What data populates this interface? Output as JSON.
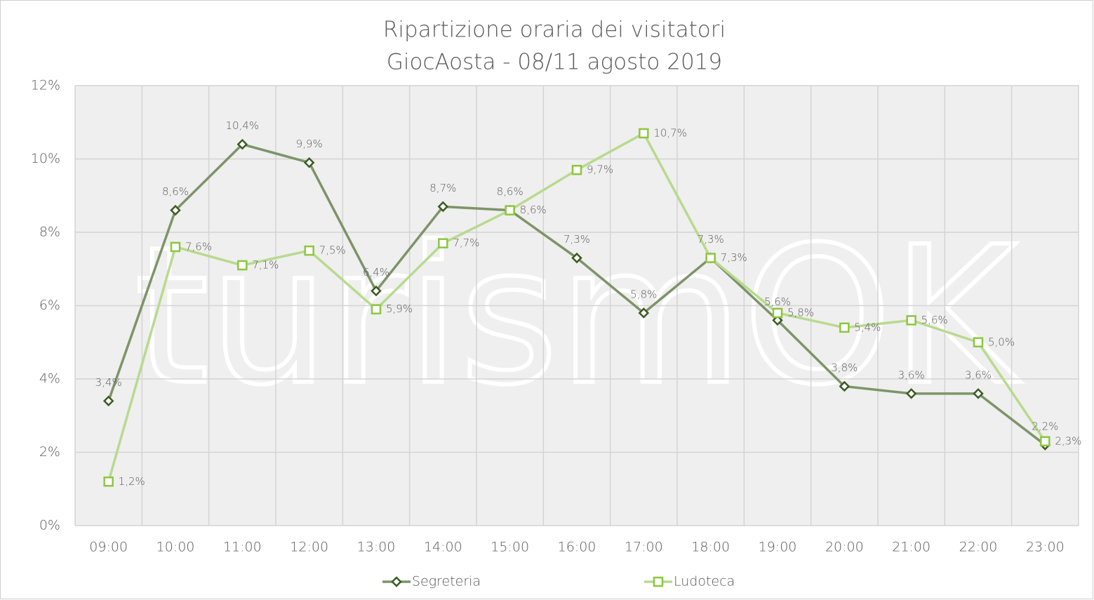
{
  "chart_data": {
    "type": "line",
    "title": "Ripartizione oraria dei visitatori",
    "subtitle": "GiocAosta - 08/11 agosto 2019",
    "watermark": "turismOK",
    "categories": [
      "09:00",
      "10:00",
      "11:00",
      "12:00",
      "13:00",
      "14:00",
      "15:00",
      "16:00",
      "17:00",
      "18:00",
      "19:00",
      "20:00",
      "21:00",
      "22:00",
      "23:00"
    ],
    "series": [
      {
        "name": "Segreteria",
        "color": "#7d9468",
        "marker_color": "#3b5a22",
        "marker": "diamond",
        "values": [
          3.4,
          8.6,
          10.4,
          9.9,
          6.4,
          8.7,
          8.6,
          7.3,
          5.8,
          7.3,
          5.6,
          3.8,
          3.6,
          3.6,
          2.2
        ],
        "value_labels": [
          "3,4%",
          "8,6%",
          "10,4%",
          "9,9%",
          "6,4%",
          "8,7%",
          "8,6%",
          "7,3%",
          "5,8%",
          "7,3%",
          "5,6%",
          "3,8%",
          "3,6%",
          "3,6%",
          "2,2%"
        ]
      },
      {
        "name": "Ludoteca",
        "color": "#b8da8e",
        "marker_color": "#8cc63f",
        "marker": "square",
        "values": [
          1.2,
          7.6,
          7.1,
          7.5,
          5.9,
          7.7,
          8.6,
          9.7,
          10.7,
          7.3,
          5.8,
          5.4,
          5.6,
          5.0,
          2.3
        ],
        "value_labels": [
          "1,2%",
          "7,6%",
          "7,1%",
          "7,5%",
          "5,9%",
          "7,7%",
          "8,6%",
          "9,7%",
          "10,7%",
          "7,3%",
          "5,8%",
          "5,4%",
          "5,6%",
          "5,0%",
          "2,3%"
        ]
      }
    ],
    "ylim": [
      0,
      12
    ],
    "yticks": [
      {
        "value": 0,
        "label": "0%"
      },
      {
        "value": 2,
        "label": "2%"
      },
      {
        "value": 4,
        "label": "4%"
      },
      {
        "value": 6,
        "label": "6%"
      },
      {
        "value": 8,
        "label": "8%"
      },
      {
        "value": 10,
        "label": "10%"
      },
      {
        "value": 12,
        "label": "12%"
      }
    ],
    "grid": true,
    "legend": "bottom"
  }
}
